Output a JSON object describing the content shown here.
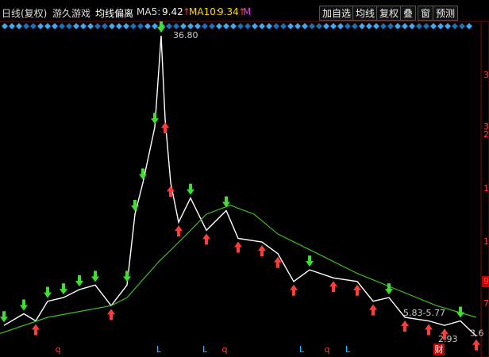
{
  "toolbar": {
    "period": "日线(复权)",
    "stock": "游久游戏",
    "indicator": "均线偏离",
    "ma5": {
      "label": "MA5:",
      "value": "9.42",
      "trend": "↑"
    },
    "ma10": {
      "label": "MA10:",
      "value": "9.34",
      "trend": "↑"
    },
    "more": "M",
    "buttons": [
      "加自选",
      "均线",
      "复权",
      "叠",
      "窗",
      "预测"
    ]
  },
  "chart_data": {
    "type": "line",
    "xlim": [
      0,
      121.2
    ],
    "ylim": [
      0.98,
      38.3
    ],
    "series": [
      {
        "name": "price",
        "color": "#ffffff",
        "x": [
          1,
          6,
          9,
          12,
          16,
          20,
          24,
          28,
          32,
          34,
          36,
          39,
          40.6,
          41.6,
          43,
          45,
          48,
          52,
          57,
          60,
          66,
          70,
          74,
          78,
          84,
          90,
          94,
          98,
          102,
          108,
          112,
          116,
          120
        ],
        "values": [
          4.5,
          5.8,
          5.0,
          7.2,
          7.6,
          8.5,
          9.0,
          6.7,
          9.0,
          16.9,
          20.4,
          26.6,
          36.8,
          27.5,
          20.4,
          16.0,
          18.7,
          15.1,
          17.3,
          14.2,
          13.8,
          12.5,
          9.4,
          10.7,
          9.8,
          9.4,
          7.2,
          7.6,
          5.4,
          5.0,
          4.5,
          5.0,
          3.3
        ]
      },
      {
        "name": "long-ma",
        "color": "#3fbf1f",
        "x": [
          0,
          12,
          28,
          32,
          40,
          46,
          52,
          58,
          64,
          70,
          80,
          90,
          100,
          110,
          120
        ],
        "values": [
          3.6,
          5.4,
          6.7,
          7.6,
          11.6,
          14.2,
          16.9,
          17.9,
          16.9,
          14.7,
          12.5,
          10.3,
          8.5,
          6.7,
          5.4
        ]
      }
    ],
    "annotations": [
      {
        "text": "36.80",
        "value": 36.8
      },
      {
        "text": "5.83-5.77",
        "value": 5.83
      },
      {
        "text": "3.6",
        "value": 3.6
      },
      {
        "text": "2.93",
        "value": 2.93
      }
    ],
    "markers": [
      {
        "text": "q",
        "color": "#ff3c3c"
      },
      {
        "text": "L",
        "color": "#00c8ff"
      },
      {
        "text": "L",
        "color": "#00c8ff"
      },
      {
        "text": "q",
        "color": "#ff3c3c"
      },
      {
        "text": "L",
        "color": "#00c8ff"
      },
      {
        "text": "q",
        "color": "#ff3c3c"
      },
      {
        "text": "L",
        "color": "#00c8ff"
      },
      {
        "text": "财",
        "color": "#ffffff"
      }
    ],
    "right_labels": [
      "3",
      "3",
      "2",
      "1",
      "1",
      "9",
      "7"
    ]
  }
}
